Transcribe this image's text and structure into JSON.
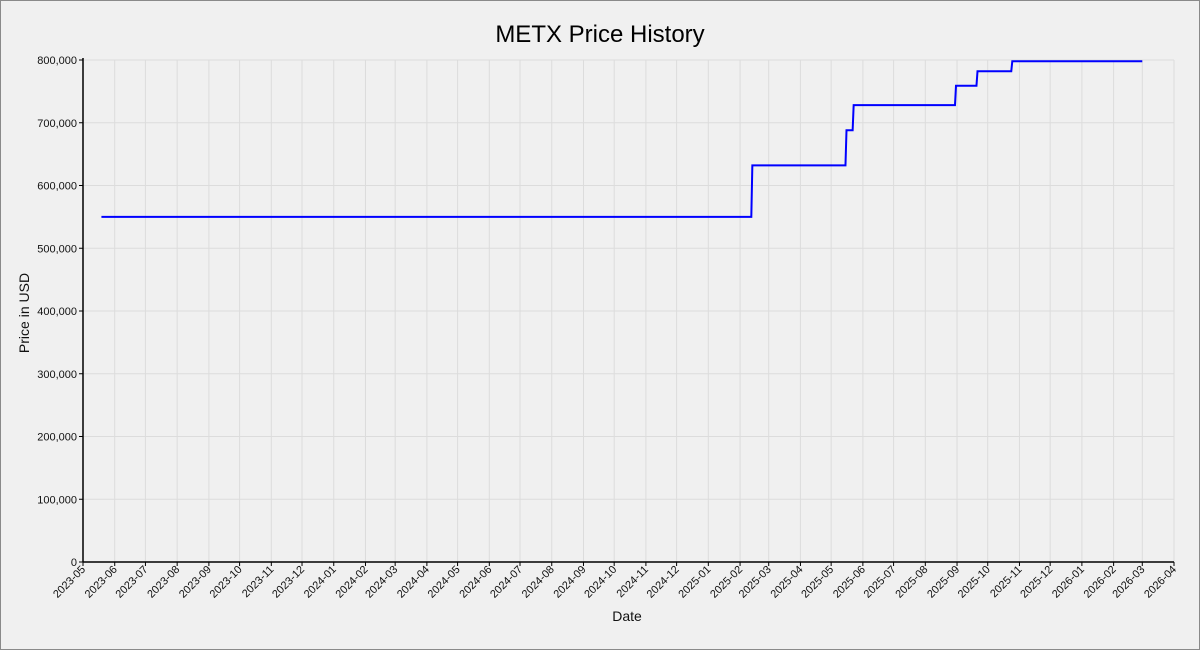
{
  "chart_data": {
    "type": "line",
    "title": "METX Price History",
    "xlabel": "Date",
    "ylabel": "Price in USD",
    "grid": true,
    "legend": "none",
    "x_range": [
      "2023-05-01",
      "2026-04-01"
    ],
    "ylim": [
      0,
      800000
    ],
    "y_ticks": [
      0,
      100000,
      200000,
      300000,
      400000,
      500000,
      600000,
      700000,
      800000
    ],
    "y_tick_labels": [
      "0",
      "100,000",
      "200,000",
      "300,000",
      "400,000",
      "500,000",
      "600,000",
      "700,000",
      "800,000"
    ],
    "x_tick_labels": [
      "2023-05",
      "2023-06",
      "2023-07",
      "2023-08",
      "2023-09",
      "2023-10",
      "2023-11",
      "2023-12",
      "2024-01",
      "2024-02",
      "2024-03",
      "2024-04",
      "2024-05",
      "2024-06",
      "2024-07",
      "2024-08",
      "2024-09",
      "2024-10",
      "2024-11",
      "2024-12",
      "2025-01",
      "2025-02",
      "2025-03",
      "2025-04",
      "2025-05",
      "2025-06",
      "2025-07",
      "2025-08",
      "2025-09",
      "2025-10",
      "2025-11",
      "2025-12",
      "2026-01",
      "2026-02",
      "2026-03",
      "2026-04"
    ],
    "series": [
      {
        "color": "#0000ff",
        "points": [
          [
            "2023-05-19",
            550000
          ],
          [
            "2025-02-12",
            550000
          ],
          [
            "2025-02-13",
            632000
          ],
          [
            "2025-05-15",
            632000
          ],
          [
            "2025-05-16",
            688000
          ],
          [
            "2025-05-22",
            688000
          ],
          [
            "2025-05-23",
            728000
          ],
          [
            "2025-08-30",
            728000
          ],
          [
            "2025-08-31",
            759000
          ],
          [
            "2025-09-20",
            759000
          ],
          [
            "2025-09-21",
            782000
          ],
          [
            "2025-10-24",
            782000
          ],
          [
            "2025-10-25",
            798000
          ],
          [
            "2026-03-01",
            798000
          ]
        ]
      }
    ]
  }
}
